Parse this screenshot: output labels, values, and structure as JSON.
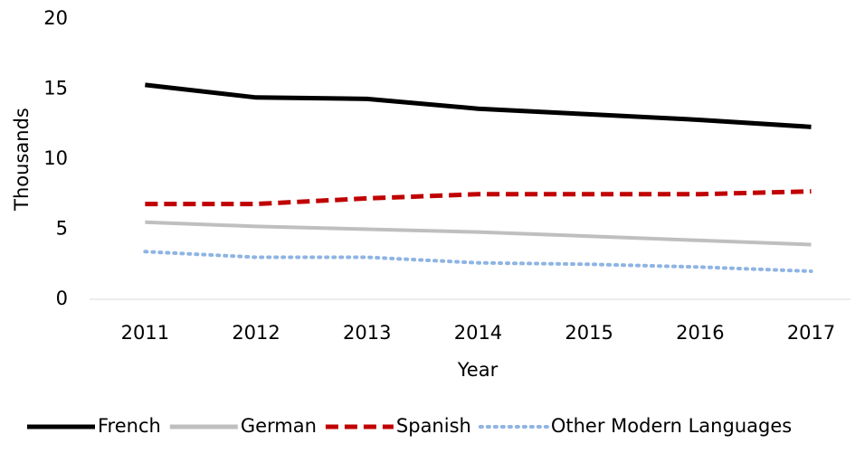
{
  "chart_data": {
    "type": "line",
    "x_label": "Year",
    "y_label": "Thousands",
    "categories": [
      "2011",
      "2012",
      "2013",
      "2014",
      "2015",
      "2016",
      "2017"
    ],
    "series": [
      {
        "name": "French",
        "color": "#000000",
        "dash": "solid",
        "values": [
          15.3,
          14.4,
          14.3,
          13.6,
          13.2,
          12.8,
          12.3
        ]
      },
      {
        "name": "German",
        "color": "#bfbfbf",
        "dash": "solid",
        "values": [
          5.5,
          5.2,
          5.0,
          4.8,
          4.5,
          4.2,
          3.9
        ]
      },
      {
        "name": "Spanish",
        "color": "#c00000",
        "dash": "dashed",
        "values": [
          6.8,
          6.8,
          7.2,
          7.5,
          7.5,
          7.5,
          7.7
        ]
      },
      {
        "name": "Other Modern Languages",
        "color": "#8eb4e3",
        "dash": "dotted",
        "values": [
          3.4,
          3.0,
          3.0,
          2.6,
          2.5,
          2.3,
          2.0
        ]
      }
    ],
    "ylim": [
      0,
      20
    ],
    "yticks": [
      0,
      5,
      10,
      15,
      20
    ],
    "grid": false,
    "legend": "bottom"
  }
}
